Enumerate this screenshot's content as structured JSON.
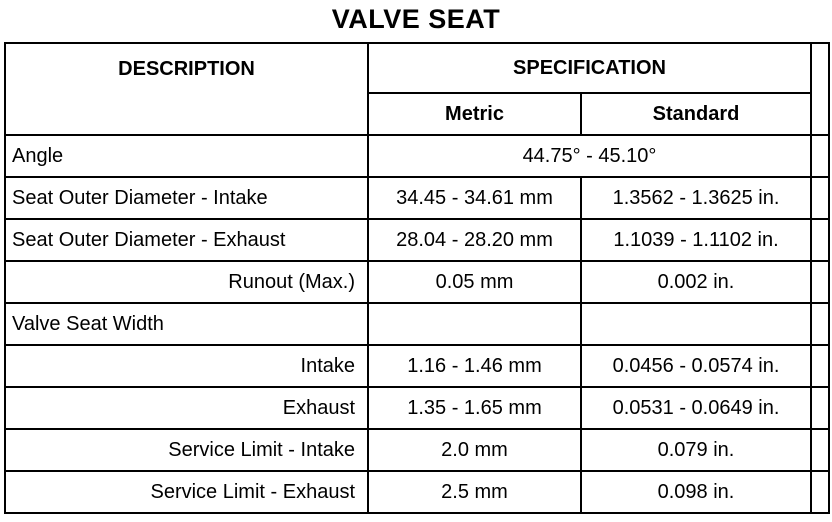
{
  "title": "VALVE SEAT",
  "table": {
    "headers": {
      "description": "DESCRIPTION",
      "specification": "SPECIFICATION",
      "metric": "Metric",
      "standard": "Standard"
    },
    "rows": [
      {
        "description": "Angle",
        "align": "left",
        "span": "44.75° - 45.10°"
      },
      {
        "description": "Seat Outer Diameter - Intake",
        "align": "left",
        "metric": "34.45 - 34.61 mm",
        "standard": "1.3562 - 1.3625 in."
      },
      {
        "description": "Seat Outer Diameter - Exhaust",
        "align": "left",
        "metric": "28.04 - 28.20 mm",
        "standard": "1.1039 - 1.1102 in."
      },
      {
        "description": "Runout (Max.)",
        "align": "right",
        "metric": "0.05 mm",
        "standard": "0.002 in."
      },
      {
        "description": "Valve Seat Width",
        "align": "left",
        "metric": "",
        "standard": ""
      },
      {
        "description": "Intake",
        "align": "right",
        "metric": "1.16 - 1.46 mm",
        "standard": "0.0456 - 0.0574 in."
      },
      {
        "description": "Exhaust",
        "align": "right",
        "metric": "1.35 - 1.65 mm",
        "standard": "0.0531 - 0.0649 in."
      },
      {
        "description": "Service Limit - Intake",
        "align": "right",
        "metric": "2.0 mm",
        "standard": "0.079 in."
      },
      {
        "description": "Service Limit - Exhaust",
        "align": "right",
        "metric": "2.5 mm",
        "standard": "0.098 in."
      }
    ]
  }
}
